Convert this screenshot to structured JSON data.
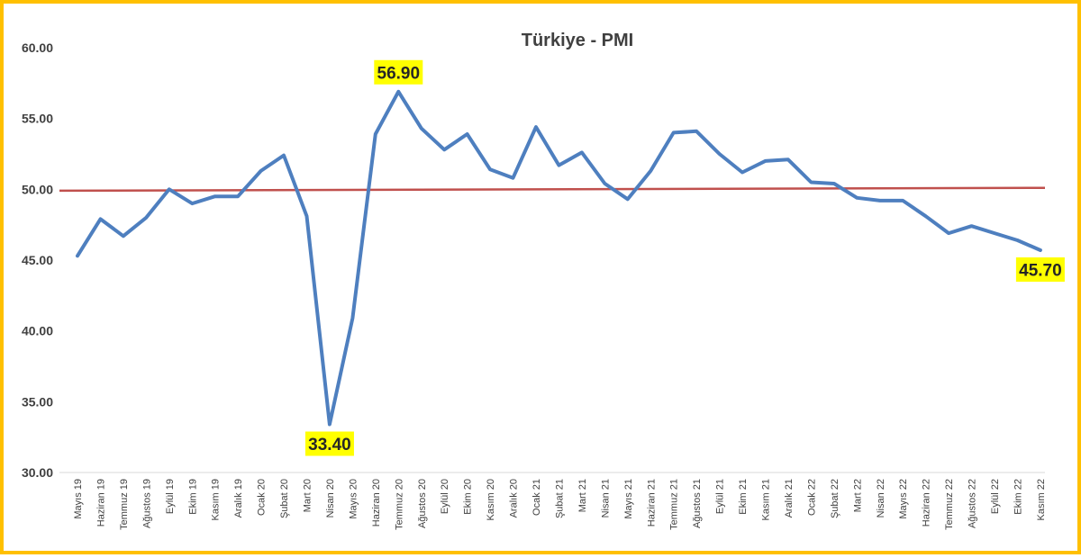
{
  "colors": {
    "frame": "#FFC000",
    "series": "#4E7FBF",
    "reference": "#C0504D",
    "highlight": "#FFFF00",
    "text": "#404040",
    "axis": "#D9D9D9"
  },
  "chart_data": {
    "type": "line",
    "title": "Türkiye - PMI",
    "xlabel": "",
    "ylabel": "",
    "ylim": [
      30,
      60
    ],
    "yticks": [
      "30.00",
      "35.00",
      "40.00",
      "45.00",
      "50.00",
      "55.00",
      "60.00"
    ],
    "grid": false,
    "legend": "none",
    "categories": [
      "Mayıs 19",
      "Haziran 19",
      "Temmuz 19",
      "Ağustos 19",
      "Eylül 19",
      "Ekim 19",
      "Kasım 19",
      "Aralık 19",
      "Ocak 20",
      "Şubat 20",
      "Mart 20",
      "Nisan 20",
      "Mayıs 20",
      "Haziran 20",
      "Temmuz 20",
      "Ağustos 20",
      "Eylül 20",
      "Ekim 20",
      "Kasım 20",
      "Aralık 20",
      "Ocak 21",
      "Şubat 21",
      "Mart 21",
      "Nisan 21",
      "Mayıs 21",
      "Haziran 21",
      "Temmuz 21",
      "Ağustos 21",
      "Eylül 21",
      "Ekim 21",
      "Kasım 21",
      "Aralık 21",
      "Ocak 22",
      "Şubat 22",
      "Mart 22",
      "Nisan 22",
      "Mayıs 22",
      "Haziran 22",
      "Temmuz 22",
      "Ağustos 22",
      "Eylül 22",
      "Ekim 22",
      "Kasım 22"
    ],
    "series": [
      {
        "values": [
          45.3,
          47.9,
          46.7,
          48.0,
          50.0,
          49.0,
          49.5,
          49.5,
          51.3,
          52.4,
          48.1,
          33.4,
          40.9,
          53.9,
          56.9,
          54.3,
          52.8,
          53.9,
          51.4,
          50.8,
          54.4,
          51.7,
          52.6,
          50.4,
          49.3,
          51.3,
          54.0,
          54.1,
          52.5,
          51.2,
          52.0,
          52.1,
          50.5,
          50.4,
          49.4,
          49.2,
          49.2,
          48.1,
          46.9,
          47.4,
          46.9,
          46.4,
          45.7
        ]
      }
    ],
    "reference_line": {
      "start": 49.9,
      "end": 50.1
    },
    "annotations": [
      {
        "index": 14,
        "label": "56.90",
        "position": "above"
      },
      {
        "index": 11,
        "label": "33.40",
        "position": "below"
      },
      {
        "index": 42,
        "label": "45.70",
        "position": "below"
      }
    ]
  }
}
